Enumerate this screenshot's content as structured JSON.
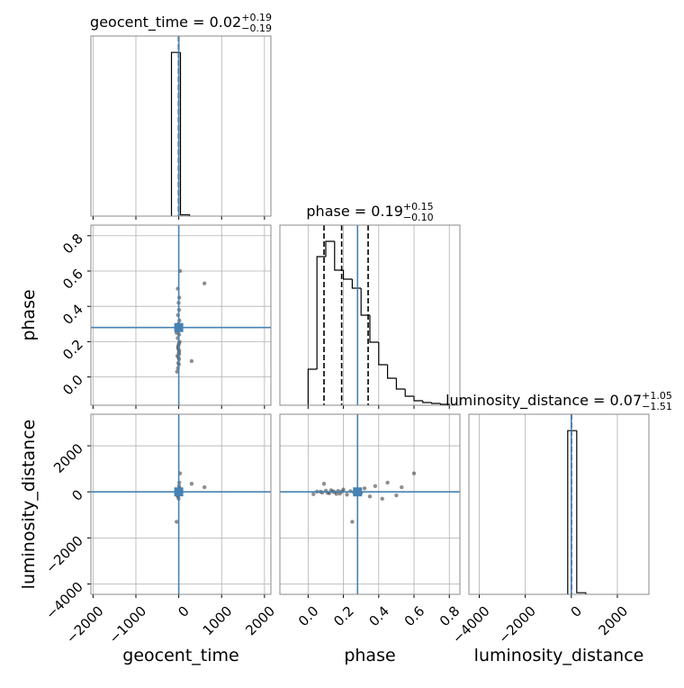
{
  "chart_data": {
    "type": "corner",
    "grid": true,
    "truth_color": "#4682b4",
    "hist_color": "#000000",
    "sample_color": "#333333",
    "parameters": [
      {
        "name": "geocent_time",
        "title": "geocent_time = 0.02",
        "plus": "+0.19",
        "minus": "−0.19",
        "truth": 0,
        "lim": [
          -2050,
          2150
        ],
        "ticks": [
          {
            "value": -2000,
            "label": "−2000"
          },
          {
            "value": -1000,
            "label": "−1000"
          },
          0,
          1000,
          2000
        ],
        "quantiles": [
          -0.17,
          0.02,
          0.21
        ],
        "bins": [
          -170,
          40,
          250
        ],
        "counts": [
          1000,
          8
        ],
        "hist_ylim": [
          0,
          1100
        ]
      },
      {
        "name": "phase",
        "title": "phase = 0.19",
        "plus": "+0.15",
        "minus": "−0.10",
        "truth": 0.28,
        "lim": [
          -0.16,
          0.86
        ],
        "ticks": [
          {
            "value": 0,
            "label": "0.0"
          },
          0.2,
          0.4,
          0.6,
          0.8
        ],
        "quantiles": [
          0.09,
          0.19,
          0.34
        ],
        "bins": [
          0,
          0.05,
          0.1,
          0.15,
          0.2,
          0.25,
          0.3,
          0.35,
          0.4,
          0.45,
          0.5,
          0.55,
          0.6,
          0.65,
          0.7,
          0.75,
          0.8
        ],
        "counts": [
          40,
          165,
          182,
          150,
          140,
          130,
          100,
          70,
          45,
          30,
          18,
          10,
          5,
          3,
          2,
          1
        ],
        "hist_ylim": [
          0,
          200
        ]
      },
      {
        "name": "luminosity_distance",
        "title": "luminosity_distance = 0.07",
        "plus": "+1.05",
        "minus": "−1.51",
        "truth": 0,
        "lim": [
          -4450,
          3370
        ],
        "ticks": [
          {
            "value": -4000,
            "label": "−4000"
          },
          {
            "value": -2000,
            "label": "−2000"
          },
          0,
          2000
        ],
        "quantiles": [
          -1.44,
          0.07,
          1.12
        ],
        "bins": [
          -157,
          235,
          627
        ],
        "counts": [
          1000,
          10
        ],
        "hist_ylim": [
          0,
          1100
        ]
      }
    ],
    "samples": {
      "geocent_time": [
        -20,
        -10,
        5,
        -30,
        0,
        10,
        -15,
        -5,
        20,
        -25,
        8,
        -12,
        3,
        -8,
        15,
        -18,
        6,
        -3,
        12,
        -22,
        2,
        -6,
        9,
        -14,
        4,
        600,
        -40,
        30,
        -50,
        300
      ],
      "phase": [
        0.05,
        0.08,
        0.1,
        0.12,
        0.14,
        0.15,
        0.17,
        0.18,
        0.2,
        0.22,
        0.24,
        0.26,
        0.28,
        0.3,
        0.32,
        0.35,
        0.38,
        0.42,
        0.45,
        0.5,
        0.07,
        0.11,
        0.13,
        0.16,
        0.19,
        0.53,
        0.03,
        0.6,
        0.25,
        0.09
      ],
      "luminosity_distance": [
        10,
        -30,
        50,
        -60,
        20,
        -10,
        40,
        -80,
        100,
        -120,
        30,
        -20,
        60,
        -50,
        150,
        -200,
        250,
        -300,
        400,
        -150,
        5,
        -40,
        70,
        -90,
        15,
        200,
        -100,
        800,
        -1300,
        350
      ]
    }
  }
}
